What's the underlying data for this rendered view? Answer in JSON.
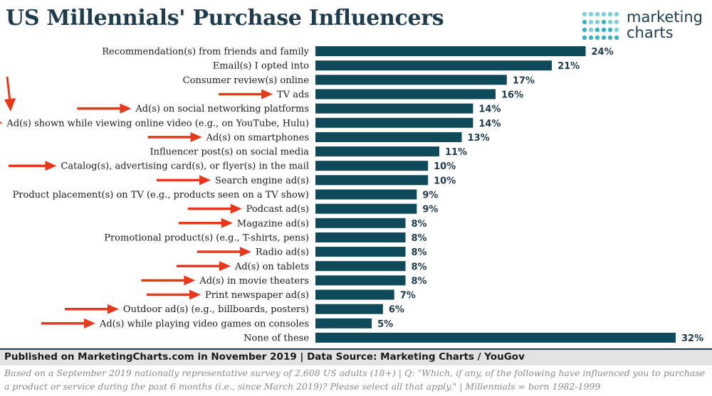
{
  "header": {
    "title": "US Millennials' Purchase Influencers",
    "logo_line1": "marketing",
    "logo_line2": "charts",
    "logo_colors": [
      "#3bb3c3",
      "#7fcfd9",
      "#1f3c4d"
    ]
  },
  "chart_data": {
    "type": "bar",
    "orientation": "horizontal",
    "title": "US Millennials' Purchase Influencers",
    "categories": [
      "Recommendation(s) from friends and family",
      "Email(s) I opted into",
      "Consumer review(s) online",
      "TV ads",
      "Ad(s) on social networking platforms",
      "Ad(s) shown while viewing online video (e.g., on YouTube, Hulu)",
      "Ad(s) on smartphones",
      "Influencer post(s) on social media",
      "Catalog(s), advertising card(s), or flyer(s) in the mail",
      "Search engine ad(s)",
      "Product placement(s) on TV (e.g., products seen on a TV show)",
      "Podcast ad(s)",
      "Magazine ad(s)",
      "Promotional product(s) (e.g., T-shirts, pens)",
      "Radio ad(s)",
      "Ad(s) on tablets",
      "Ad(s) in movie theaters",
      "Print newspaper ad(s)",
      "Outdoor ad(s) (e.g., billboards, posters)",
      "Ad(s) while playing video games on consoles",
      "None of these"
    ],
    "values": [
      24,
      21,
      17,
      16,
      14,
      14,
      13,
      11,
      10,
      10,
      9,
      9,
      8,
      8,
      8,
      8,
      8,
      7,
      6,
      5,
      32
    ],
    "value_labels": [
      "24%",
      "21%",
      "17%",
      "16%",
      "14%",
      "14%",
      "13%",
      "11%",
      "10%",
      "10%",
      "9%",
      "9%",
      "8%",
      "8%",
      "8%",
      "8%",
      "8%",
      "7%",
      "6%",
      "5%",
      "32%"
    ],
    "arrow_marked": [
      false,
      false,
      false,
      true,
      true,
      true,
      true,
      false,
      true,
      true,
      false,
      true,
      true,
      false,
      true,
      true,
      true,
      true,
      true,
      true,
      false
    ],
    "xlim": [
      0,
      32
    ],
    "grid": false,
    "legend": "none",
    "bar_color": "#0e4a5a",
    "arrow_color": "#e8381c"
  },
  "footer": {
    "published": "Published on MarketingCharts.com in November 2019 | Data Source: Marketing Charts / YouGov",
    "note": "Based on a September 2019 nationally representative survey of 2,608 US adults (18+) | Q: \"Which, if any, of the following have influenced you to purchase a product or service during the past 6 months (i.e., since March 2019)? Please select all that apply.\" | Millennials = born 1982-1999"
  }
}
